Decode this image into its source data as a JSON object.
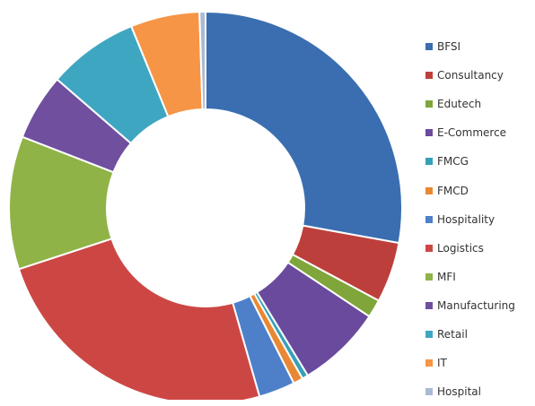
{
  "chart_data": {
    "type": "pie",
    "donut": true,
    "legend_position": "right",
    "slices": [
      {
        "label": "BFSI",
        "value": 28.0,
        "color": "#3a6eb0"
      },
      {
        "label": "Consultancy",
        "value": 5.0,
        "color": "#bd3f3b"
      },
      {
        "label": "Edutech",
        "value": 1.5,
        "color": "#7fa53b"
      },
      {
        "label": "E-Commerce",
        "value": 7.0,
        "color": "#6a4a9c"
      },
      {
        "label": "FMCG",
        "value": 0.5,
        "color": "#36a0b8"
      },
      {
        "label": "FMCD",
        "value": 0.8,
        "color": "#e98834"
      },
      {
        "label": "Hospitality",
        "value": 3.0,
        "color": "#4d80c9"
      },
      {
        "label": "Logistics",
        "value": 24.5,
        "color": "#cc4744"
      },
      {
        "label": "MFI",
        "value": 11.0,
        "color": "#8fb347"
      },
      {
        "label": "Manufacturing",
        "value": 5.5,
        "color": "#6f4f9e"
      },
      {
        "label": "Retail",
        "value": 7.5,
        "color": "#3fa6c2"
      },
      {
        "label": "IT",
        "value": 5.7,
        "color": "#f69546"
      },
      {
        "label": "Hospital",
        "value": 0.5,
        "color": "#a9bad4"
      }
    ]
  }
}
